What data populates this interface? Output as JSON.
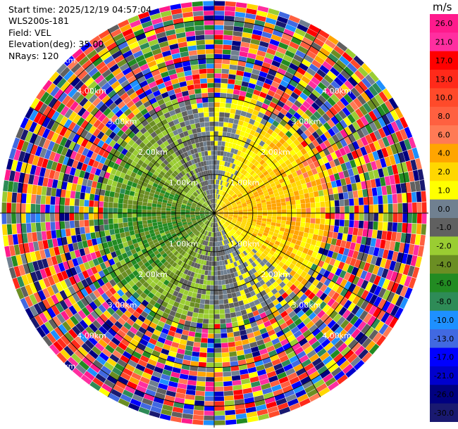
{
  "header": {
    "start_time": "Start time: 2025/12/19 04:57:04",
    "instrument": "WLS200s-181",
    "field": "Field: VEL",
    "elevation": "Elevation(deg): 35.00",
    "nrays": "NRays: 120"
  },
  "colorbar": {
    "unit": "m/s",
    "labels": [
      "26.0",
      "21.0",
      "17.0",
      "13.0",
      "10.0",
      "8.0",
      "6.0",
      "4.0",
      "2.0",
      "1.0",
      "0.0",
      "-1.0",
      "-2.0",
      "-4.0",
      "-6.0",
      "-8.0",
      "-10.0",
      "-13.0",
      "-17.0",
      "-21.0",
      "-26.0",
      "-30.0"
    ],
    "colors": [
      "#ff1a8c",
      "#ff2ea0",
      "#ff0000",
      "#ff2a1a",
      "#ff4a2a",
      "#ff6040",
      "#ff7a55",
      "#ffa500",
      "#ffd700",
      "#ffff00",
      "#708090",
      "#606060",
      "#9acd32",
      "#6b8e23",
      "#228b22",
      "#2e8b57",
      "#1e90ff",
      "#4169e1",
      "#0000ff",
      "#0000cd",
      "#000080",
      "#191970"
    ]
  },
  "chart_data": {
    "type": "heatmap",
    "subtype": "radar PPI (plan position indicator)",
    "field": "VEL",
    "elevation_deg": 35.0,
    "n_rays": 120,
    "value_range": [
      -30.0,
      30.0
    ],
    "value_units": "m/s",
    "range_rings_km": [
      1.0,
      2.0,
      3.0,
      4.0,
      5.0
    ],
    "max_range_km": 5.5,
    "ring_labels": [
      {
        "text": "1.00km",
        "quadrants": [
          "NW",
          "NE",
          "SW",
          "SE"
        ]
      },
      {
        "text": "2.00km",
        "quadrants": [
          "NW",
          "NE",
          "SW",
          "SE"
        ]
      },
      {
        "text": "3.00km",
        "quadrants": [
          "NW",
          "NE",
          "SW",
          "SE"
        ]
      },
      {
        "text": "4.00km",
        "quadrants": [
          "NW",
          "NE",
          "SW",
          "SE"
        ]
      },
      {
        "text": "5.00km",
        "quadrants": [
          "NW",
          "SW"
        ]
      }
    ],
    "pattern": {
      "noise_beyond_km": 3.0,
      "sectors": [
        {
          "azimuth_deg": 90,
          "trend": "positive (away)"
        },
        {
          "azimuth_deg": 270,
          "trend": "negative (toward)"
        },
        {
          "azimuth_deg": 0,
          "trend": "mixed green / yellow near center"
        },
        {
          "azimuth_deg": 180,
          "trend": "yellow / green near center"
        }
      ]
    },
    "grid": true
  }
}
